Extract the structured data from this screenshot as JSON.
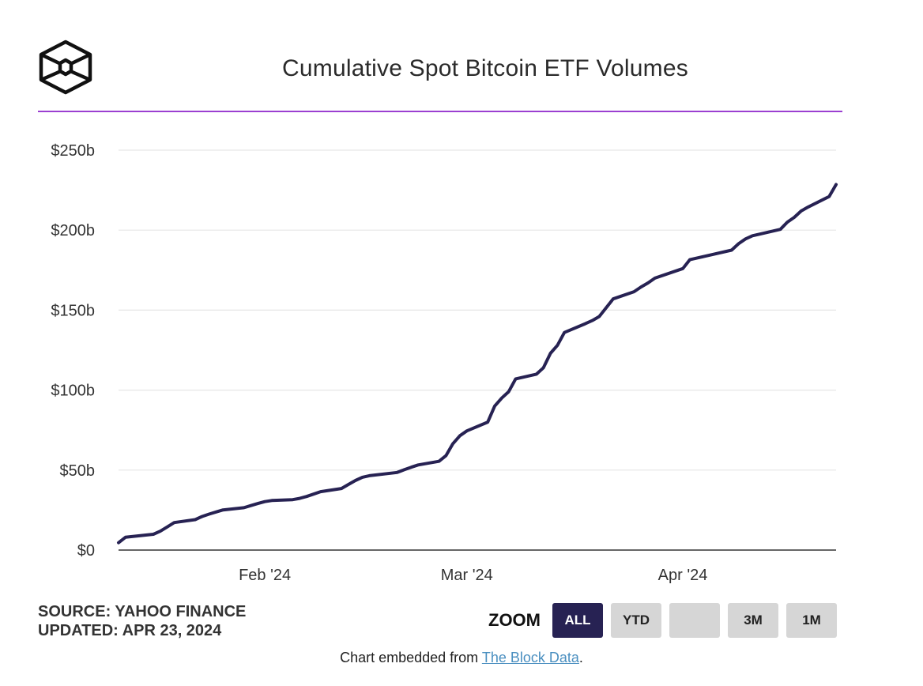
{
  "header": {
    "title": "Cumulative Spot Bitcoin ETF Volumes",
    "logo_icon": "the-block-cube-logo",
    "rule_color": "#9b3fd1"
  },
  "chart_data": {
    "type": "line",
    "title": "Cumulative Spot Bitcoin ETF Volumes",
    "xlabel": "",
    "ylabel": "",
    "ylim": [
      0,
      250
    ],
    "y_unit": "$ billions",
    "y_ticks": [
      {
        "value": 0,
        "label": "$0"
      },
      {
        "value": 50,
        "label": "$50b"
      },
      {
        "value": 100,
        "label": "$100b"
      },
      {
        "value": 150,
        "label": "$150b"
      },
      {
        "value": 200,
        "label": "$200b"
      },
      {
        "value": 250,
        "label": "$250b"
      }
    ],
    "x_range": [
      "2024-01-11",
      "2024-04-23"
    ],
    "x_ticks": [
      {
        "date": "2024-02-01",
        "label": "Feb '24"
      },
      {
        "date": "2024-03-01",
        "label": "Mar '24"
      },
      {
        "date": "2024-04-01",
        "label": "Apr '24"
      }
    ],
    "grid": true,
    "line_color": "#272253",
    "series": [
      {
        "points": [
          [
            "2024-01-11",
            4.6
          ],
          [
            "2024-01-12",
            8.0
          ],
          [
            "2024-01-16",
            9.9
          ],
          [
            "2024-01-17",
            11.8
          ],
          [
            "2024-01-18",
            14.5
          ],
          [
            "2024-01-19",
            17.2
          ],
          [
            "2024-01-22",
            19.0
          ],
          [
            "2024-01-23",
            21.0
          ],
          [
            "2024-01-24",
            22.5
          ],
          [
            "2024-01-25",
            23.8
          ],
          [
            "2024-01-26",
            25.1
          ],
          [
            "2024-01-29",
            26.5
          ],
          [
            "2024-01-30",
            27.8
          ],
          [
            "2024-01-31",
            29.1
          ],
          [
            "2024-02-01",
            30.3
          ],
          [
            "2024-02-02",
            31.0
          ],
          [
            "2024-02-05",
            31.5
          ],
          [
            "2024-02-06",
            32.3
          ],
          [
            "2024-02-07",
            33.5
          ],
          [
            "2024-02-08",
            35.0
          ],
          [
            "2024-02-09",
            36.5
          ],
          [
            "2024-02-12",
            38.5
          ],
          [
            "2024-02-13",
            41.0
          ],
          [
            "2024-02-14",
            43.5
          ],
          [
            "2024-02-15",
            45.5
          ],
          [
            "2024-02-16",
            46.5
          ],
          [
            "2024-02-20",
            48.5
          ],
          [
            "2024-02-21",
            50.2
          ],
          [
            "2024-02-22",
            51.8
          ],
          [
            "2024-02-23",
            53.2
          ],
          [
            "2024-02-26",
            55.5
          ],
          [
            "2024-02-27",
            59.0
          ],
          [
            "2024-02-28",
            66.5
          ],
          [
            "2024-02-29",
            71.5
          ],
          [
            "2024-03-01",
            74.5
          ],
          [
            "2024-03-04",
            80.0
          ],
          [
            "2024-03-05",
            90.0
          ],
          [
            "2024-03-06",
            95.0
          ],
          [
            "2024-03-07",
            99.0
          ],
          [
            "2024-03-08",
            107.0
          ],
          [
            "2024-03-11",
            110.0
          ],
          [
            "2024-03-12",
            114.0
          ],
          [
            "2024-03-13",
            123.0
          ],
          [
            "2024-03-14",
            128.0
          ],
          [
            "2024-03-15",
            136.0
          ],
          [
            "2024-03-18",
            141.5
          ],
          [
            "2024-03-19",
            143.5
          ],
          [
            "2024-03-20",
            146.0
          ],
          [
            "2024-03-21",
            151.5
          ],
          [
            "2024-03-22",
            157.0
          ],
          [
            "2024-03-25",
            161.5
          ],
          [
            "2024-03-26",
            164.5
          ],
          [
            "2024-03-27",
            167.0
          ],
          [
            "2024-03-28",
            170.0
          ],
          [
            "2024-04-01",
            176.0
          ],
          [
            "2024-04-02",
            181.5
          ],
          [
            "2024-04-03",
            182.5
          ],
          [
            "2024-04-04",
            183.5
          ],
          [
            "2024-04-05",
            184.5
          ],
          [
            "2024-04-08",
            187.5
          ],
          [
            "2024-04-09",
            191.5
          ],
          [
            "2024-04-10",
            194.5
          ],
          [
            "2024-04-11",
            196.5
          ],
          [
            "2024-04-12",
            197.5
          ],
          [
            "2024-04-15",
            200.5
          ],
          [
            "2024-04-16",
            205.0
          ],
          [
            "2024-04-17",
            208.0
          ],
          [
            "2024-04-18",
            212.0
          ],
          [
            "2024-04-19",
            214.5
          ],
          [
            "2024-04-22",
            221.0
          ],
          [
            "2024-04-23",
            228.5
          ]
        ]
      }
    ]
  },
  "footer": {
    "source": "SOURCE: YAHOO FINANCE",
    "updated": "UPDATED: APR 23, 2024",
    "zoom_label": "ZOOM",
    "zoom_buttons": [
      {
        "label": "ALL",
        "active": true
      },
      {
        "label": "YTD",
        "active": false
      },
      {
        "label": "",
        "active": false
      },
      {
        "label": "3M",
        "active": false
      },
      {
        "label": "1M",
        "active": false
      }
    ],
    "embed_prefix": "Chart embedded from ",
    "embed_link_text": "The Block Data",
    "embed_suffix": "."
  }
}
